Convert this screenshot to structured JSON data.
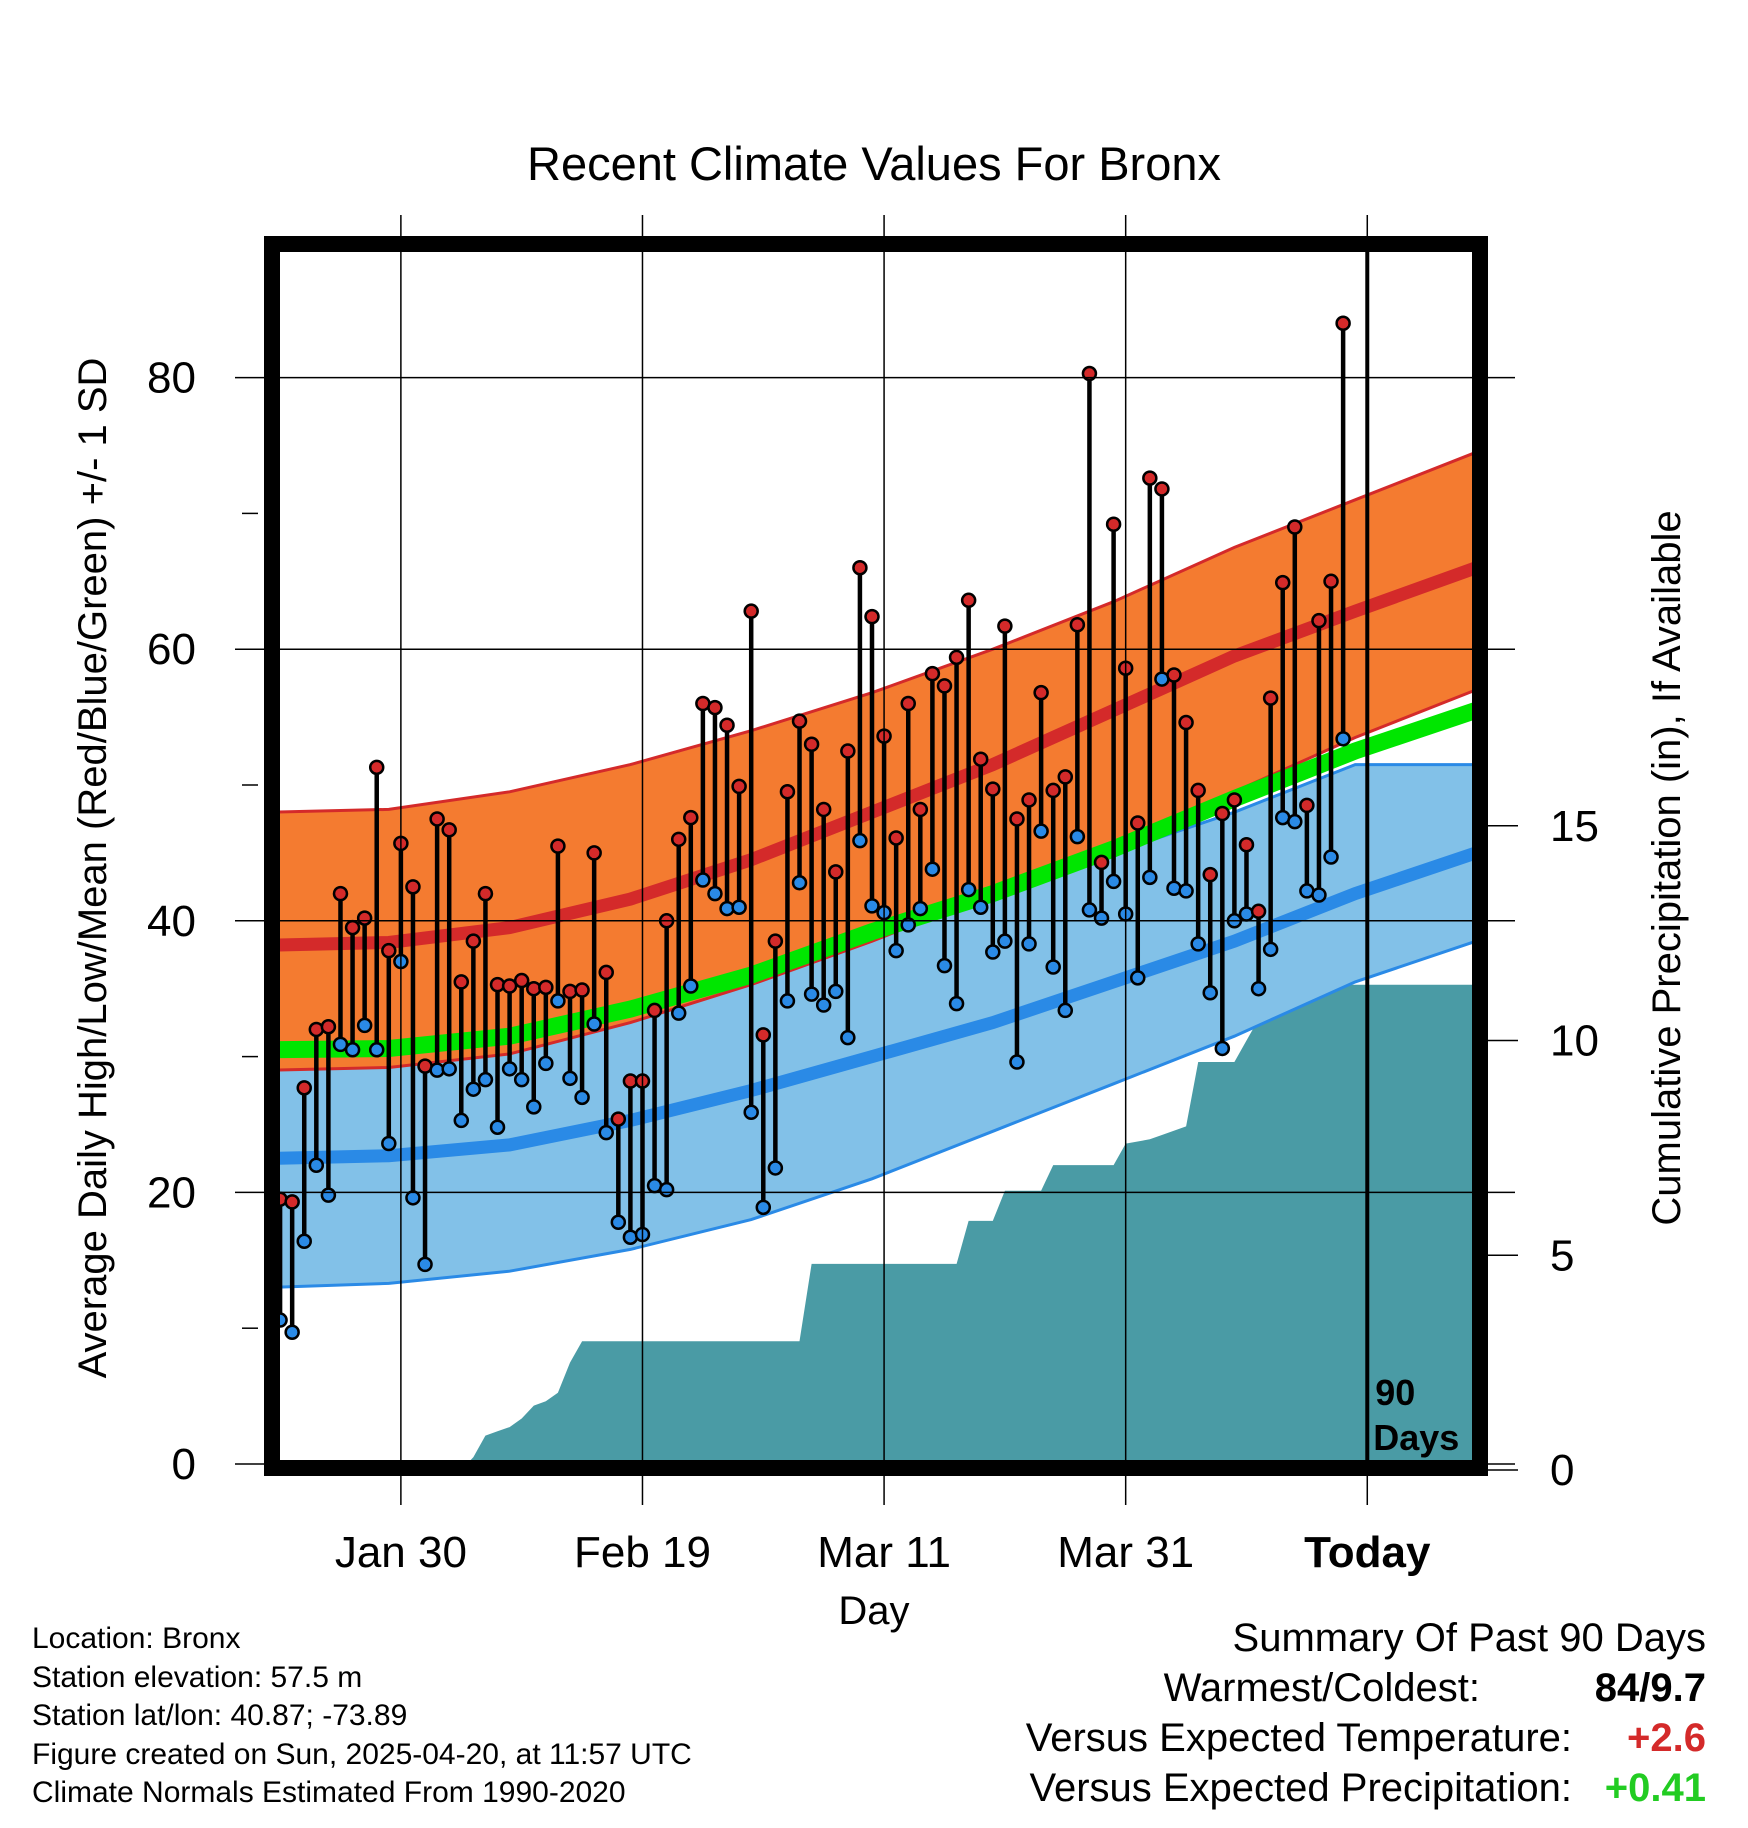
{
  "chart_data": {
    "type": "line",
    "title": "Recent Climate Values For Bronx",
    "xlabel": "Day",
    "ylabel": "Average Daily High/Low/Mean (Red/Blue/Green) +/- 1 SD",
    "y2label": "Cumulative Precipitation (in), If Available",
    "x_ticks": [
      {
        "label": "Jan 30",
        "day": 11
      },
      {
        "label": "Feb 19",
        "day": 31
      },
      {
        "label": "Mar 11",
        "day": 51
      },
      {
        "label": "Mar 31",
        "day": 71
      },
      {
        "label": "Today",
        "day": 91
      }
    ],
    "y_ticks": [
      "0",
      "20",
      "40",
      "60",
      "80"
    ],
    "y2_ticks": [
      "0",
      "5",
      "10",
      "15"
    ],
    "ylim": [
      0,
      90
    ],
    "y2lim": [
      0,
      15
    ],
    "xlim": [
      0,
      101
    ],
    "marker": {
      "day": 91,
      "label_line1": "90",
      "label_line2": "Days"
    },
    "normals": {
      "days": [
        0,
        10,
        20,
        30,
        40,
        50,
        60,
        70,
        80,
        90,
        100
      ],
      "high_mean": [
        38.2,
        38.4,
        39.5,
        41.6,
        44.5,
        48.0,
        51.5,
        55.5,
        59.5,
        62.8,
        66.0
      ],
      "high_upper": [
        48.0,
        48.2,
        49.5,
        51.5,
        54.0,
        56.8,
        60.0,
        63.5,
        67.5,
        71.0,
        74.5
      ],
      "high_lower": [
        29.0,
        29.2,
        30.2,
        32.5,
        35.3,
        38.5,
        42.0,
        45.5,
        49.5,
        53.5,
        57.0
      ],
      "low_mean": [
        22.5,
        22.7,
        23.5,
        25.3,
        27.5,
        30.0,
        32.5,
        35.5,
        38.5,
        42.0,
        45.0
      ],
      "low_upper": [
        32.5,
        32.3,
        32.8,
        34.5,
        37.0,
        39.5,
        42.0,
        45.0,
        48.0,
        51.5,
        51.5
      ],
      "low_lower": [
        13.0,
        13.3,
        14.2,
        15.8,
        18.0,
        21.0,
        24.5,
        28.0,
        31.5,
        35.5,
        38.5
      ],
      "mean": [
        30.5,
        30.6,
        31.5,
        33.5,
        36.0,
        39.2,
        42.0,
        45.3,
        49.0,
        52.5,
        55.5
      ]
    },
    "highs": [
      25.5,
      19.5,
      19.3,
      27.7,
      32.0,
      32.2,
      42.0,
      39.5,
      40.2,
      51.3,
      37.8,
      45.7,
      42.5,
      29.3,
      47.5,
      46.7,
      35.5,
      38.5,
      42.0,
      35.3,
      35.2,
      35.6,
      35.0,
      35.1,
      45.5,
      34.8,
      34.9,
      45.0,
      36.2,
      25.4,
      28.2,
      28.2,
      33.4,
      40.0,
      46.0,
      47.6,
      56.0,
      55.7,
      54.4,
      49.9,
      62.8,
      31.6,
      38.5,
      49.5,
      54.7,
      53.0,
      48.2,
      43.6,
      52.5,
      66.0,
      62.4,
      53.6,
      46.1,
      56.0,
      48.2,
      58.2,
      57.3,
      59.4,
      63.6,
      51.9,
      49.7,
      61.7,
      47.5,
      48.9,
      56.8,
      49.6,
      50.6,
      61.8,
      80.3,
      44.3,
      69.2,
      58.6,
      47.2,
      72.6,
      71.8,
      58.1,
      54.6,
      49.6,
      43.4,
      47.9,
      48.9,
      45.6,
      40.7,
      56.4,
      64.9,
      69.0,
      48.5,
      62.1,
      65.0,
      84.0
    ],
    "lows": [
      16.6,
      10.6,
      9.7,
      16.4,
      22.0,
      19.8,
      30.9,
      30.5,
      32.3,
      30.5,
      23.6,
      37.0,
      19.6,
      14.7,
      29.0,
      29.1,
      25.3,
      27.6,
      28.3,
      24.8,
      29.1,
      28.3,
      26.3,
      29.5,
      34.1,
      28.4,
      27.0,
      32.4,
      24.4,
      17.8,
      16.7,
      16.9,
      20.5,
      20.2,
      33.2,
      35.2,
      43.0,
      42.0,
      40.9,
      41.0,
      25.9,
      18.9,
      21.8,
      34.1,
      42.8,
      34.6,
      33.8,
      34.8,
      31.4,
      45.9,
      41.1,
      40.6,
      37.8,
      39.7,
      40.9,
      43.8,
      36.7,
      33.9,
      42.3,
      41.0,
      37.7,
      38.5,
      29.6,
      38.3,
      46.6,
      36.6,
      33.4,
      46.2,
      40.8,
      40.2,
      42.9,
      40.5,
      35.8,
      43.2,
      57.8,
      42.4,
      42.2,
      38.3,
      34.7,
      30.6,
      40.0,
      40.5,
      35.0,
      37.9,
      47.6,
      47.3,
      42.2,
      41.9,
      44.7,
      53.4
    ],
    "precip_days": [
      0,
      16,
      17,
      18,
      19,
      20,
      21,
      22,
      23,
      24,
      25,
      26,
      27,
      28,
      29,
      30,
      44,
      45,
      57,
      58,
      60,
      61,
      64,
      65,
      70,
      71,
      73,
      74,
      76,
      77,
      80,
      81,
      82,
      83,
      84,
      101
    ],
    "precip_values": [
      0,
      0,
      0.3,
      0.8,
      0.9,
      1.0,
      1.2,
      1.5,
      1.6,
      1.8,
      2.5,
      3.0,
      3.0,
      3.0,
      3.0,
      3.0,
      3.0,
      4.8,
      4.8,
      5.8,
      5.8,
      6.5,
      6.5,
      7.1,
      7.1,
      7.6,
      7.7,
      7.8,
      8.0,
      9.5,
      9.5,
      10.0,
      10.5,
      11.0,
      11.3,
      11.3
    ],
    "colors": {
      "high_band": "#f47b30",
      "high_edge": "#d42a2a",
      "high_mean": "#d42a2a",
      "low_band": "#82c1e8",
      "low_edge": "#2a8ae6",
      "low_mean": "#2a8ae6",
      "mean": "#00e600",
      "precip": "#4a9ba5",
      "high_dot": "#d42a2a",
      "low_dot": "#2a8ae6"
    }
  },
  "info": [
    "Location: Bronx",
    "Station elevation: 57.5 m",
    "Station lat/lon: 40.87; -73.89",
    "Figure created on Sun, 2025-04-20, at 11:57 UTC",
    "Climate Normals Estimated From 1990-2020"
  ],
  "summary": {
    "heading": "Summary Of Past 90 Days",
    "warmest_label": "Warmest/Coldest:",
    "warmest_value": "84/9.7",
    "temp_label": "Versus Expected Temperature:",
    "temp_value": "+2.6",
    "temp_color": "#d42a2a",
    "precip_label": "Versus Expected Precipitation:",
    "precip_value": "+0.41",
    "precip_color": "#22cc22"
  }
}
